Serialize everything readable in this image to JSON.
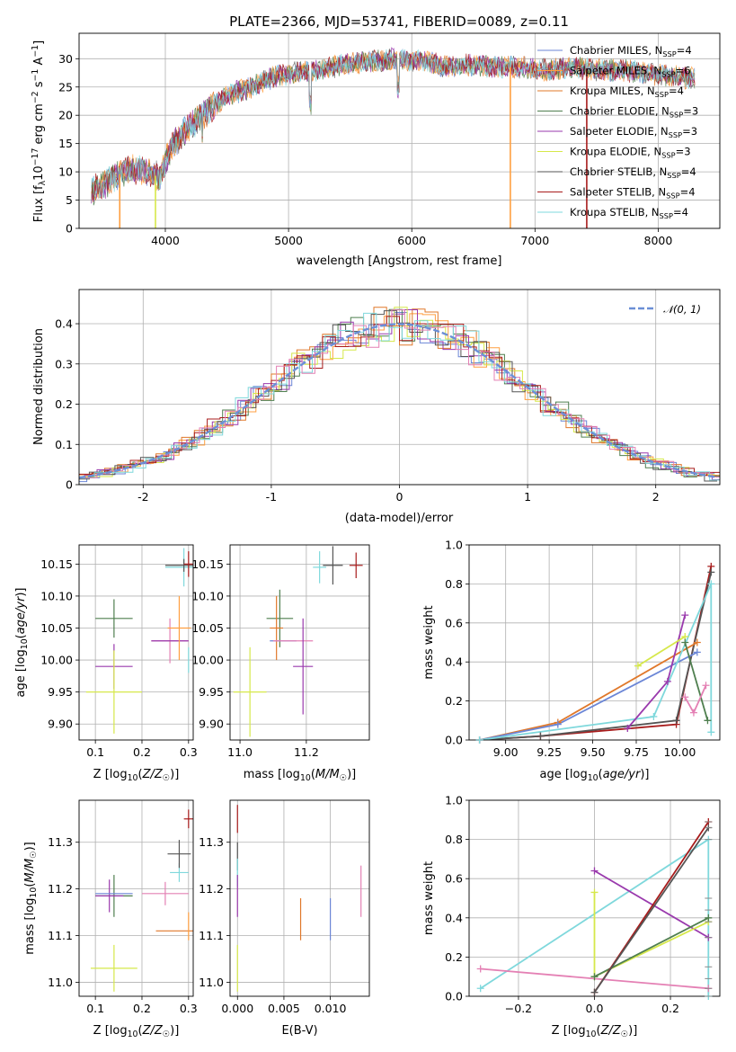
{
  "colors": {
    "chabrier_miles": "#6b86d6",
    "salpeter_miles": "#ff9f40",
    "kroupa_miles": "#e0782a",
    "chabrier_elodie": "#4f7f4f",
    "salpeter_elodie": "#9a3aad",
    "kroupa_elodie": "#d6e84a",
    "chabrier_stelib": "#555555",
    "salpeter_stelib": "#a81c1c",
    "kroupa_stelib": "#7fd8dc",
    "pink": "#e480b4",
    "normal": "#6b8fd6"
  },
  "chart_data": [
    {
      "id": "spectrum",
      "type": "line",
      "title": "PLATE=2366, MJD=53741, FIBERID=0089, z=0.11",
      "xlabel": "wavelength [Angstrom, rest frame]",
      "ylabel": "Flux [f_λ 10^-17 erg cm^-2 s^-1 A^-1]",
      "xlim": [
        3300,
        8500
      ],
      "ylim": [
        0,
        34.5
      ],
      "xticks": [
        4000,
        5000,
        6000,
        7000,
        8000
      ],
      "yticks": [
        0,
        5,
        10,
        15,
        20,
        25,
        30
      ],
      "legend_position": "top-right",
      "series_names": [
        "Chabrier MILES, N_SSP=4",
        "Salpeter MILES, N_SSP=6",
        "Kroupa MILES, N_SSP=4",
        "Chabrier ELODIE, N_SSP=3",
        "Salpeter ELODIE, N_SSP=3",
        "Kroupa ELODIE, N_SSP=3",
        "Chabrier STELIB, N_SSP=4",
        "Salpeter STELIB, N_SSP=4",
        "Kroupa STELIB, N_SSP=4"
      ],
      "continuum": {
        "x": [
          3400,
          3550,
          3700,
          3850,
          3950,
          4050,
          4150,
          4300,
          4500,
          4700,
          4900,
          5050,
          5250,
          5450,
          5700,
          5900,
          6100,
          6300,
          6500,
          6700,
          6900,
          7100,
          7300,
          7500,
          7700,
          7900,
          8100,
          8300
        ],
        "y": [
          6.5,
          8.5,
          10.5,
          10,
          9,
          14.5,
          17,
          20,
          23.5,
          25,
          27,
          27.5,
          28,
          29,
          29.5,
          30,
          29.5,
          28.5,
          29,
          28.5,
          28.5,
          28,
          28.5,
          28,
          28,
          27.5,
          27,
          26.5
        ]
      },
      "dips": [
        {
          "x": 3630,
          "y": 0,
          "series": "Salpeter MILES"
        },
        {
          "x": 3920,
          "y": 0,
          "series": "Kroupa ELODIE"
        },
        {
          "x": 6800,
          "y": 0,
          "series": "Salpeter MILES"
        },
        {
          "x": 7420,
          "y": 0,
          "series": "Salpeter STELIB"
        }
      ]
    },
    {
      "id": "residuals",
      "type": "histogram",
      "xlabel": "(data-model)/error",
      "ylabel": "Normed distribution",
      "xlim": [
        -2.5,
        2.5
      ],
      "ylim": [
        0,
        0.485
      ],
      "xticks": [
        -2,
        -1,
        0,
        1,
        2
      ],
      "yticks": [
        0.0,
        0.1,
        0.2,
        0.3,
        0.4
      ],
      "bin_width": 0.1,
      "reference_curve": "N(0,1)",
      "legend": "𝒩(0, 1)",
      "legend_position": "top-right"
    },
    {
      "id": "z_vs_age",
      "type": "errorbar",
      "xlabel": "Z [log10(Z/Z☉)]",
      "ylabel": "age  [log10(age/yr)]",
      "xlim": [
        0.065,
        0.31
      ],
      "ylim": [
        9.875,
        10.18
      ],
      "xticks": [
        0.1,
        0.2,
        0.3
      ],
      "yticks": [
        9.9,
        9.95,
        10.0,
        10.05,
        10.1,
        10.15
      ],
      "points": [
        {
          "x": 0.14,
          "y": 10.065,
          "xerr": 0.04,
          "yerr": 0.03,
          "color": "chabrier_elodie"
        },
        {
          "x": 0.14,
          "y": 9.99,
          "xerr": 0.04,
          "yerr": 0.035,
          "color": "salpeter_elodie"
        },
        {
          "x": 0.14,
          "y": 9.95,
          "xerr": 0.06,
          "yerr": 0.065,
          "color": "kroupa_elodie"
        },
        {
          "x": 0.26,
          "y": 10.03,
          "xerr": 0.04,
          "yerr": 0.035,
          "color": "pink"
        },
        {
          "x": 0.26,
          "y": 10.03,
          "xerr": 0.04,
          "yerr": 0.0,
          "color": "salpeter_elodie"
        },
        {
          "x": 0.28,
          "y": 10.05,
          "xerr": 0.025,
          "yerr": 0.05,
          "color": "salpeter_miles"
        },
        {
          "x": 0.29,
          "y": 10.145,
          "xerr": 0.04,
          "yerr": 0.03,
          "color": "kroupa_stelib"
        },
        {
          "x": 0.29,
          "y": 10.148,
          "xerr": 0.04,
          "yerr": 0.01,
          "color": "chabrier_stelib"
        },
        {
          "x": 0.3,
          "y": 10.15,
          "xerr": 0.01,
          "yerr": 0.02,
          "color": "salpeter_stelib"
        },
        {
          "x": 0.3,
          "y": 10.0,
          "xerr": 0.0,
          "yerr": 0.02,
          "color": "kroupa_stelib"
        }
      ]
    },
    {
      "id": "mass_vs_age",
      "type": "errorbar",
      "xlabel": "mass [log10(M/M☉)]",
      "ylabel": "",
      "xlim": [
        10.97,
        11.39
      ],
      "ylim": [
        9.875,
        10.18
      ],
      "xticks": [
        11.0,
        11.2
      ],
      "yticks": [
        9.9,
        9.95,
        10.0,
        10.05,
        10.1,
        10.15
      ],
      "points": [
        {
          "x": 11.03,
          "y": 9.95,
          "xerr": 0.05,
          "yerr": 0.07,
          "color": "kroupa_elodie"
        },
        {
          "x": 11.12,
          "y": 10.065,
          "xerr": 0.04,
          "yerr": 0.045,
          "color": "chabrier_elodie"
        },
        {
          "x": 11.11,
          "y": 10.05,
          "xerr": 0.02,
          "yerr": 0.05,
          "color": "kroupa_miles"
        },
        {
          "x": 11.13,
          "y": 10.03,
          "xerr": 0.04,
          "yerr": 0.0,
          "color": "chabrier_miles"
        },
        {
          "x": 11.16,
          "y": 10.03,
          "xerr": 0.06,
          "yerr": 0.0,
          "color": "pink"
        },
        {
          "x": 11.19,
          "y": 9.99,
          "xerr": 0.03,
          "yerr": 0.075,
          "color": "salpeter_elodie"
        },
        {
          "x": 11.24,
          "y": 10.145,
          "xerr": 0.02,
          "yerr": 0.025,
          "color": "kroupa_stelib"
        },
        {
          "x": 11.28,
          "y": 10.148,
          "xerr": 0.03,
          "yerr": 0.03,
          "color": "chabrier_stelib"
        },
        {
          "x": 11.35,
          "y": 10.148,
          "xerr": 0.02,
          "yerr": 0.02,
          "color": "salpeter_stelib"
        }
      ]
    },
    {
      "id": "age_vs_weight",
      "type": "line",
      "xlabel": "age  [log10(age/yr)]",
      "ylabel": "mass weight",
      "xlim": [
        8.79,
        10.23
      ],
      "ylim": [
        0,
        1
      ],
      "xticks": [
        9.0,
        9.25,
        9.5,
        9.75,
        10.0
      ],
      "yticks": [
        0.0,
        0.2,
        0.4,
        0.6,
        0.8,
        1.0
      ],
      "series": [
        {
          "color": "salpeter_stelib",
          "x": [
            8.85,
            9.2,
            9.98,
            10.18
          ],
          "y": [
            0.0,
            0.02,
            0.08,
            0.89
          ]
        },
        {
          "color": "chabrier_stelib",
          "x": [
            8.85,
            9.2,
            9.98,
            10.18
          ],
          "y": [
            0.0,
            0.02,
            0.1,
            0.86
          ]
        },
        {
          "color": "kroupa_miles",
          "x": [
            8.85,
            9.3,
            10.1
          ],
          "y": [
            0.0,
            0.09,
            0.5
          ]
        },
        {
          "color": "chabrier_miles",
          "x": [
            8.85,
            9.3,
            10.1
          ],
          "y": [
            0.0,
            0.08,
            0.45
          ]
        },
        {
          "color": "kroupa_stelib",
          "x": [
            8.85,
            9.85,
            10.18,
            10.18
          ],
          "y": [
            0.0,
            0.12,
            0.8,
            0.04
          ]
        },
        {
          "color": "salpeter_elodie",
          "x": [
            9.7,
            9.93,
            10.03
          ],
          "y": [
            0.06,
            0.3,
            0.64
          ]
        },
        {
          "color": "kroupa_elodie",
          "x": [
            9.76,
            10.03
          ],
          "y": [
            0.38,
            0.53
          ]
        },
        {
          "color": "chabrier_elodie",
          "x": [
            10.03,
            10.16
          ],
          "y": [
            0.5,
            0.1
          ]
        },
        {
          "color": "pink",
          "x": [
            10.03,
            10.08,
            10.15
          ],
          "y": [
            0.22,
            0.14,
            0.28
          ]
        }
      ]
    },
    {
      "id": "z_vs_mass",
      "type": "errorbar",
      "xlabel": "Z [log10(Z/Z☉)]",
      "ylabel": "mass [log10(M/M☉)]",
      "xlim": [
        0.065,
        0.31
      ],
      "ylim": [
        10.97,
        11.39
      ],
      "xticks": [
        0.1,
        0.2,
        0.3
      ],
      "yticks": [
        11.0,
        11.1,
        11.2,
        11.3
      ],
      "points": [
        {
          "x": 0.14,
          "y": 11.03,
          "xerr": 0.05,
          "yerr": 0.05,
          "color": "kroupa_elodie"
        },
        {
          "x": 0.14,
          "y": 11.185,
          "xerr": 0.04,
          "yerr": 0.045,
          "color": "chabrier_elodie"
        },
        {
          "x": 0.13,
          "y": 11.185,
          "xerr": 0.03,
          "yerr": 0.035,
          "color": "salpeter_elodie"
        },
        {
          "x": 0.14,
          "y": 11.19,
          "xerr": 0.04,
          "yerr": 0.0,
          "color": "chabrier_miles"
        },
        {
          "x": 0.25,
          "y": 11.19,
          "xerr": 0.05,
          "yerr": 0.025,
          "color": "pink"
        },
        {
          "x": 0.27,
          "y": 11.11,
          "xerr": 0.04,
          "yerr": 0.0,
          "color": "kroupa_miles"
        },
        {
          "x": 0.28,
          "y": 11.235,
          "xerr": 0.02,
          "yerr": 0.02,
          "color": "kroupa_stelib"
        },
        {
          "x": 0.28,
          "y": 11.275,
          "xerr": 0.025,
          "yerr": 0.03,
          "color": "chabrier_stelib"
        },
        {
          "x": 0.3,
          "y": 11.35,
          "xerr": 0.01,
          "yerr": 0.02,
          "color": "salpeter_stelib"
        },
        {
          "x": 0.3,
          "y": 11.12,
          "xerr": 0.0,
          "yerr": 0.03,
          "color": "salpeter_miles"
        }
      ]
    },
    {
      "id": "ebv_vs_mass",
      "type": "errorbar",
      "xlabel": "E(B-V)",
      "ylabel": "",
      "xlim": [
        -0.0008,
        0.0142
      ],
      "ylim": [
        10.97,
        11.39
      ],
      "xticks": [
        0.0,
        0.005,
        0.01
      ],
      "yticks": [
        11.0,
        11.1,
        11.2,
        11.3
      ],
      "points": [
        {
          "x": 0.0,
          "y": 11.35,
          "xerr": 0.0,
          "yerr": 0.03,
          "color": "salpeter_stelib"
        },
        {
          "x": 0.0,
          "y": 11.27,
          "xerr": 0.0,
          "yerr": 0.03,
          "color": "chabrier_stelib"
        },
        {
          "x": 0.0,
          "y": 11.235,
          "xerr": 0.0,
          "yerr": 0.03,
          "color": "kroupa_stelib"
        },
        {
          "x": 0.0,
          "y": 11.185,
          "xerr": 0.0,
          "yerr": 0.045,
          "color": "salpeter_elodie"
        },
        {
          "x": 0.0,
          "y": 11.03,
          "xerr": 0.0,
          "yerr": 0.05,
          "color": "kroupa_elodie"
        },
        {
          "x": 0.0068,
          "y": 11.135,
          "xerr": 0.0,
          "yerr": 0.045,
          "color": "kroupa_miles"
        },
        {
          "x": 0.01,
          "y": 11.135,
          "xerr": 0.0,
          "yerr": 0.045,
          "color": "chabrier_miles"
        },
        {
          "x": 0.0133,
          "y": 11.195,
          "xerr": 0.0,
          "yerr": 0.055,
          "color": "pink"
        }
      ]
    },
    {
      "id": "z_vs_weight",
      "type": "line",
      "xlabel": "Z [log10(Z/Z☉)]",
      "ylabel": "mass weight",
      "xlim": [
        -0.33,
        0.33
      ],
      "ylim": [
        0,
        1
      ],
      "xticks": [
        -0.2,
        0.0,
        0.2
      ],
      "yticks": [
        0.0,
        0.2,
        0.4,
        0.6,
        0.8,
        1.0
      ],
      "series": [
        {
          "color": "kroupa_stelib",
          "x": [
            -0.3,
            0.3,
            0.3
          ],
          "y": [
            0.04,
            0.8,
            0.0
          ]
        },
        {
          "color": "pink",
          "x": [
            -0.3,
            0.3
          ],
          "y": [
            0.14,
            0.04
          ]
        },
        {
          "color": "salpeter_elodie",
          "x": [
            0.0,
            0.3
          ],
          "y": [
            0.64,
            0.3
          ]
        },
        {
          "color": "kroupa_elodie",
          "x": [
            0.0,
            0.0,
            0.3
          ],
          "y": [
            0.53,
            0.1,
            0.38
          ]
        },
        {
          "color": "chabrier_elodie",
          "x": [
            0.0,
            0.3
          ],
          "y": [
            0.1,
            0.4
          ]
        },
        {
          "color": "salpeter_stelib",
          "x": [
            0.0,
            0.3
          ],
          "y": [
            0.02,
            0.89
          ]
        },
        {
          "color": "chabrier_stelib",
          "x": [
            0.0,
            0.3
          ],
          "y": [
            0.02,
            0.86
          ]
        }
      ],
      "markers_at_x": 0.3,
      "marker_y": [
        0.0,
        0.04,
        0.09,
        0.15,
        0.3,
        0.38,
        0.44,
        0.5,
        0.8,
        0.86,
        0.89
      ]
    }
  ]
}
